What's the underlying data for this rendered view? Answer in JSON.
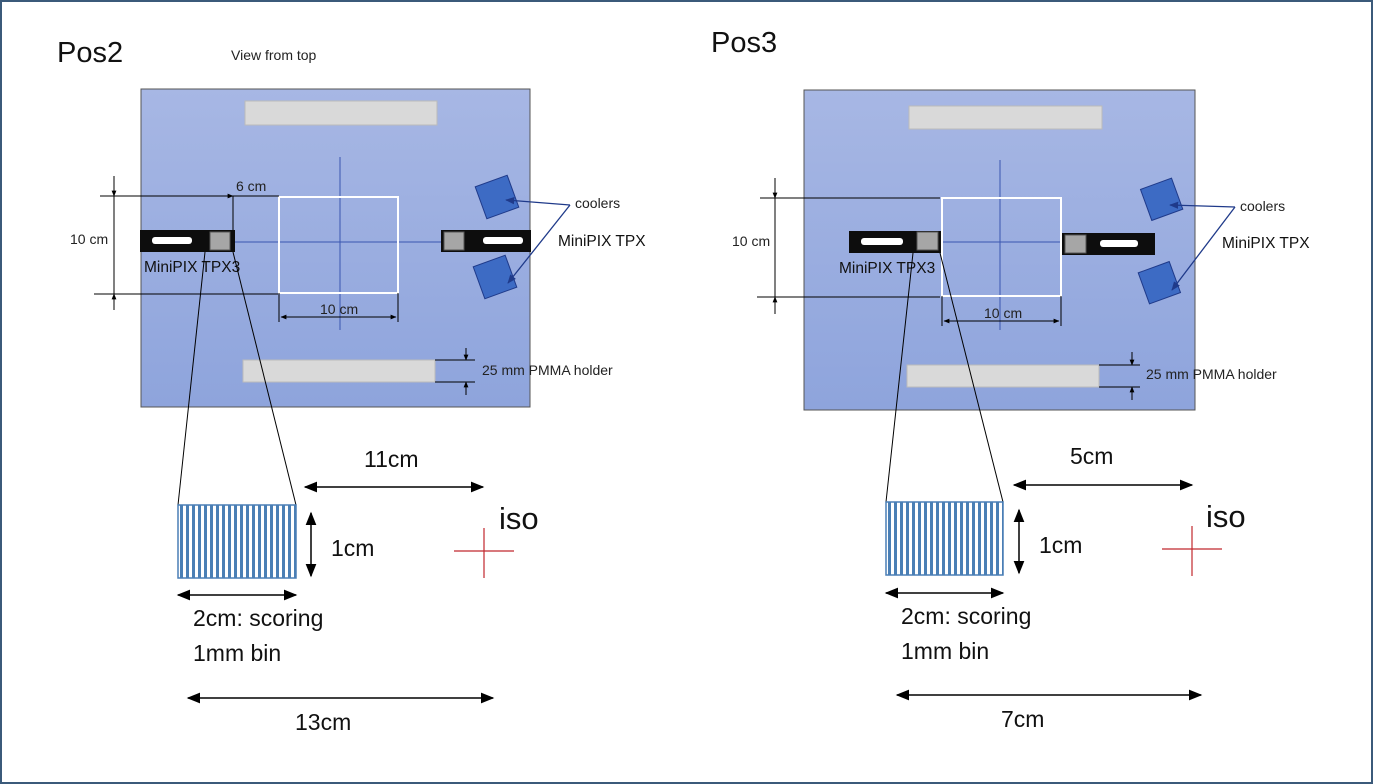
{
  "colors": {
    "frame": "#3b5a7a",
    "table_fill": "#9aaee0",
    "holder": "#d9d9d9",
    "detector": "#0d0d0d",
    "cooler": "#3d6bc4",
    "stripe_blue": "#4a7fb5",
    "iso_cross": "#c0272d"
  },
  "panels": [
    {
      "title": "Pos2",
      "subtitle": "View from top",
      "dim_6cm": "6 cm",
      "dim_10cm_left": "10 cm",
      "dim_10cm_bottom": "10 cm",
      "coolers": "coolers",
      "tpx_label": "MiniPIX TPX",
      "tpx3_label": "MiniPIX TPX3",
      "holder_label": "25 mm PMMA holder",
      "dist_iso": "11cm",
      "detector_height": "1cm",
      "scoring_line1": "2cm: scoring",
      "scoring_line2": "1mm bin",
      "total_dist": "13cm",
      "iso_label": "iso"
    },
    {
      "title": "Pos3",
      "subtitle": "",
      "dim_6cm": "",
      "dim_10cm_left": "10 cm",
      "dim_10cm_bottom": "10 cm",
      "coolers": "coolers",
      "tpx_label": "MiniPIX TPX",
      "tpx3_label": "MiniPIX TPX3",
      "holder_label": "25 mm PMMA holder",
      "dist_iso": "5cm",
      "detector_height": "1cm",
      "scoring_line1": "2cm: scoring",
      "scoring_line2": "1mm bin",
      "total_dist": "7cm",
      "iso_label": "iso"
    }
  ]
}
